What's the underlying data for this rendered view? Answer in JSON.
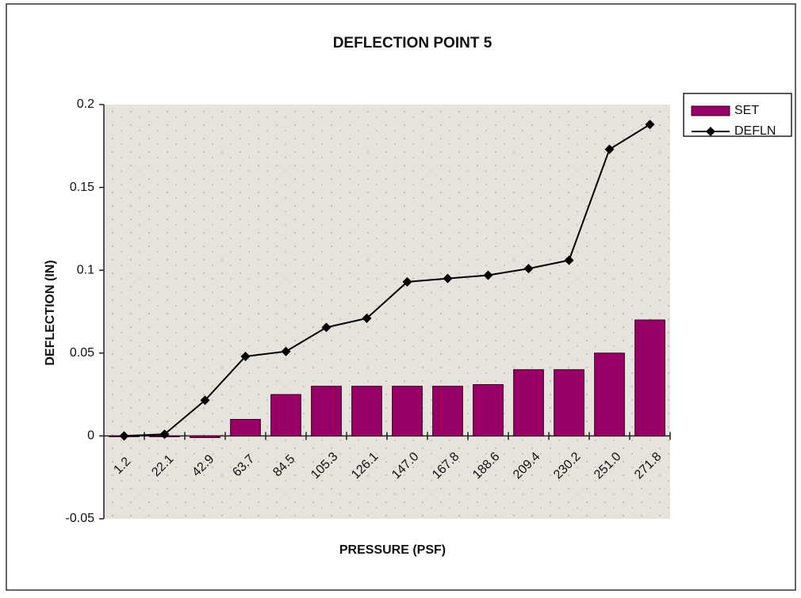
{
  "chart_data": {
    "type": "bar",
    "title": "DEFLECTION POINT 5",
    "x_label": "PRESSURE (PSF)",
    "y_label": "DEFLECTION (IN)",
    "categories": [
      "1.2",
      "22.1",
      "42.9",
      "63.7",
      "84.5",
      "105.3",
      "126.1",
      "147.0",
      "167.8",
      "188.6",
      "209.4",
      "230.2",
      "251.0",
      "271.8"
    ],
    "series": [
      {
        "name": "SET",
        "type": "bar",
        "color": "#990066",
        "values": [
          0,
          0,
          -0.001,
          0.01,
          0.025,
          0.03,
          0.03,
          0.03,
          0.03,
          0.031,
          0.04,
          0.04,
          0.05,
          0.07
        ]
      },
      {
        "name": "DEFLN",
        "type": "line",
        "color": "#000000",
        "values": [
          0,
          0.001,
          0.0215,
          0.048,
          0.051,
          0.0655,
          0.071,
          0.093,
          0.095,
          0.097,
          0.101,
          0.106,
          0.173,
          0.188
        ]
      }
    ],
    "ylim": [
      -0.05,
      0.2
    ],
    "yticks": [
      -0.05,
      0,
      0.05,
      0.1,
      0.15,
      0.2
    ],
    "grid": false,
    "legend": "right"
  }
}
